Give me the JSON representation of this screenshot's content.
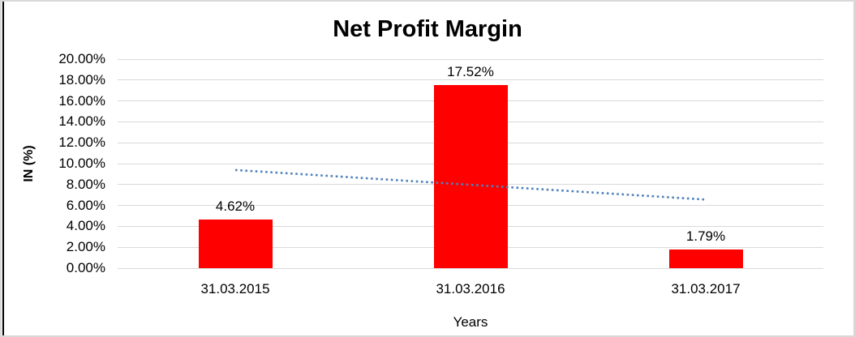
{
  "chart_data": {
    "type": "bar",
    "title": "Net Profit Margin",
    "xlabel": "Years",
    "ylabel": "IN (%)",
    "categories": [
      "31.03.2015",
      "31.03.2016",
      "31.03.2017"
    ],
    "values": [
      4.62,
      17.52,
      1.79
    ],
    "data_labels": [
      "4.62%",
      "17.52%",
      "1.79%"
    ],
    "ylim": [
      0,
      20
    ],
    "ytick_step": 2,
    "ytick_labels": [
      "0.00%",
      "2.00%",
      "4.00%",
      "6.00%",
      "8.00%",
      "10.00%",
      "12.00%",
      "14.00%",
      "16.00%",
      "18.00%",
      "20.00%"
    ],
    "grid": true,
    "legend_position": "none",
    "bar_color": "#FF0000",
    "trendline": {
      "type": "linear",
      "style": "dotted",
      "color": "#4F81BD",
      "start_value": 9.39,
      "end_value": 6.56
    }
  },
  "colors": {
    "gridline": "#D9D9D9",
    "frame_border": "#D9D9D9",
    "left_edge": "#000000",
    "background": "#FFFFFF",
    "text": "#000000"
  }
}
